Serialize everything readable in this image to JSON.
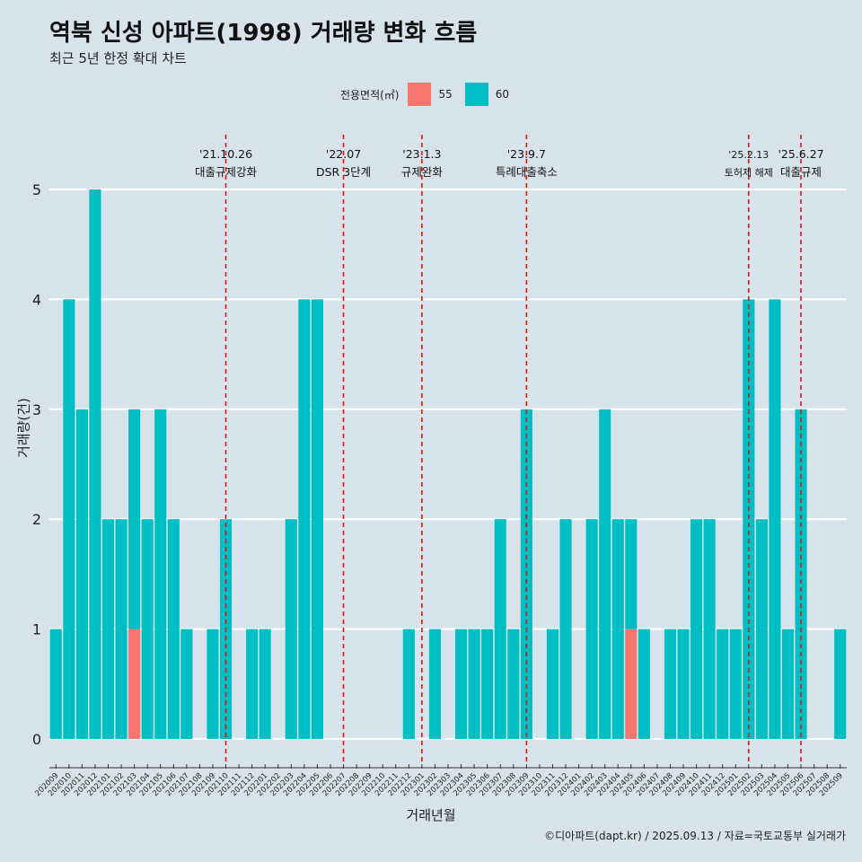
{
  "title": "역북 신성 아파트(1998) 거래량 변화 흐름",
  "subtitle": "최근 5년 한정 확대 차트",
  "caption": "©디아파트(dapt.kr) / 2025.09.13 / 자료=국토교통부 실거래가",
  "colors": {
    "background": "#d6e3ea",
    "s55": "#f8766d",
    "s60": "#00bfc4",
    "grid": "#ffffff",
    "event_line": "#e8120c"
  },
  "chart_data": {
    "type": "bar",
    "stacked": true,
    "xlabel": "거래년월",
    "ylabel": "거래량(건)",
    "ylim": [
      0,
      5
    ],
    "yticks": [
      0,
      1,
      2,
      3,
      4,
      5
    ],
    "grid": true,
    "legend": {
      "title": "전용면적(㎡)",
      "position": "top",
      "entries": [
        "55",
        "60"
      ]
    },
    "categories": [
      "202009",
      "202010",
      "202011",
      "202012",
      "202101",
      "202102",
      "202103",
      "202104",
      "202105",
      "202106",
      "202107",
      "202108",
      "202109",
      "202110",
      "202111",
      "202112",
      "202201",
      "202202",
      "202203",
      "202204",
      "202205",
      "202206",
      "202207",
      "202208",
      "202209",
      "202210",
      "202211",
      "202212",
      "202301",
      "202302",
      "202303",
      "202304",
      "202305",
      "202306",
      "202307",
      "202308",
      "202309",
      "202310",
      "202311",
      "202312",
      "202401",
      "202402",
      "202403",
      "202404",
      "202405",
      "202406",
      "202407",
      "202408",
      "202409",
      "202410",
      "202411",
      "202412",
      "202501",
      "202502",
      "202503",
      "202504",
      "202505",
      "202506",
      "202507",
      "202508",
      "202509"
    ],
    "series": [
      {
        "name": "55",
        "values": [
          0,
          0,
          0,
          0,
          0,
          0,
          1,
          0,
          0,
          0,
          0,
          0,
          0,
          0,
          0,
          0,
          0,
          0,
          0,
          0,
          0,
          0,
          0,
          0,
          0,
          0,
          0,
          0,
          0,
          0,
          0,
          0,
          0,
          0,
          0,
          0,
          0,
          0,
          0,
          0,
          0,
          0,
          0,
          0,
          1,
          0,
          0,
          0,
          0,
          0,
          0,
          0,
          0,
          0,
          0,
          0,
          0,
          0,
          0,
          0,
          0
        ]
      },
      {
        "name": "60",
        "values": [
          1,
          4,
          3,
          5,
          2,
          2,
          2,
          2,
          3,
          2,
          1,
          0,
          1,
          2,
          0,
          1,
          1,
          0,
          2,
          4,
          4,
          0,
          0,
          0,
          0,
          0,
          0,
          1,
          0,
          1,
          0,
          1,
          1,
          1,
          2,
          1,
          3,
          0,
          1,
          2,
          0,
          2,
          3,
          2,
          1,
          1,
          0,
          1,
          1,
          2,
          2,
          1,
          1,
          4,
          2,
          4,
          1,
          3,
          0,
          0,
          1
        ]
      }
    ],
    "events": [
      {
        "date": "'21.10.26",
        "label": "대출규제강화",
        "at": "202110"
      },
      {
        "date": "'22.07",
        "label": "DSR 3단계",
        "at": "202207"
      },
      {
        "date": "'23.1.3",
        "label": "규제완화",
        "at": "202301"
      },
      {
        "date": "'23.9.7",
        "label": "특례대출축소",
        "at": "202309"
      },
      {
        "date": "'25.2.13",
        "label": "토허제 해제",
        "at": "202502"
      },
      {
        "date": "'25.6.27",
        "label": "대출규제",
        "at": "202506"
      }
    ]
  }
}
